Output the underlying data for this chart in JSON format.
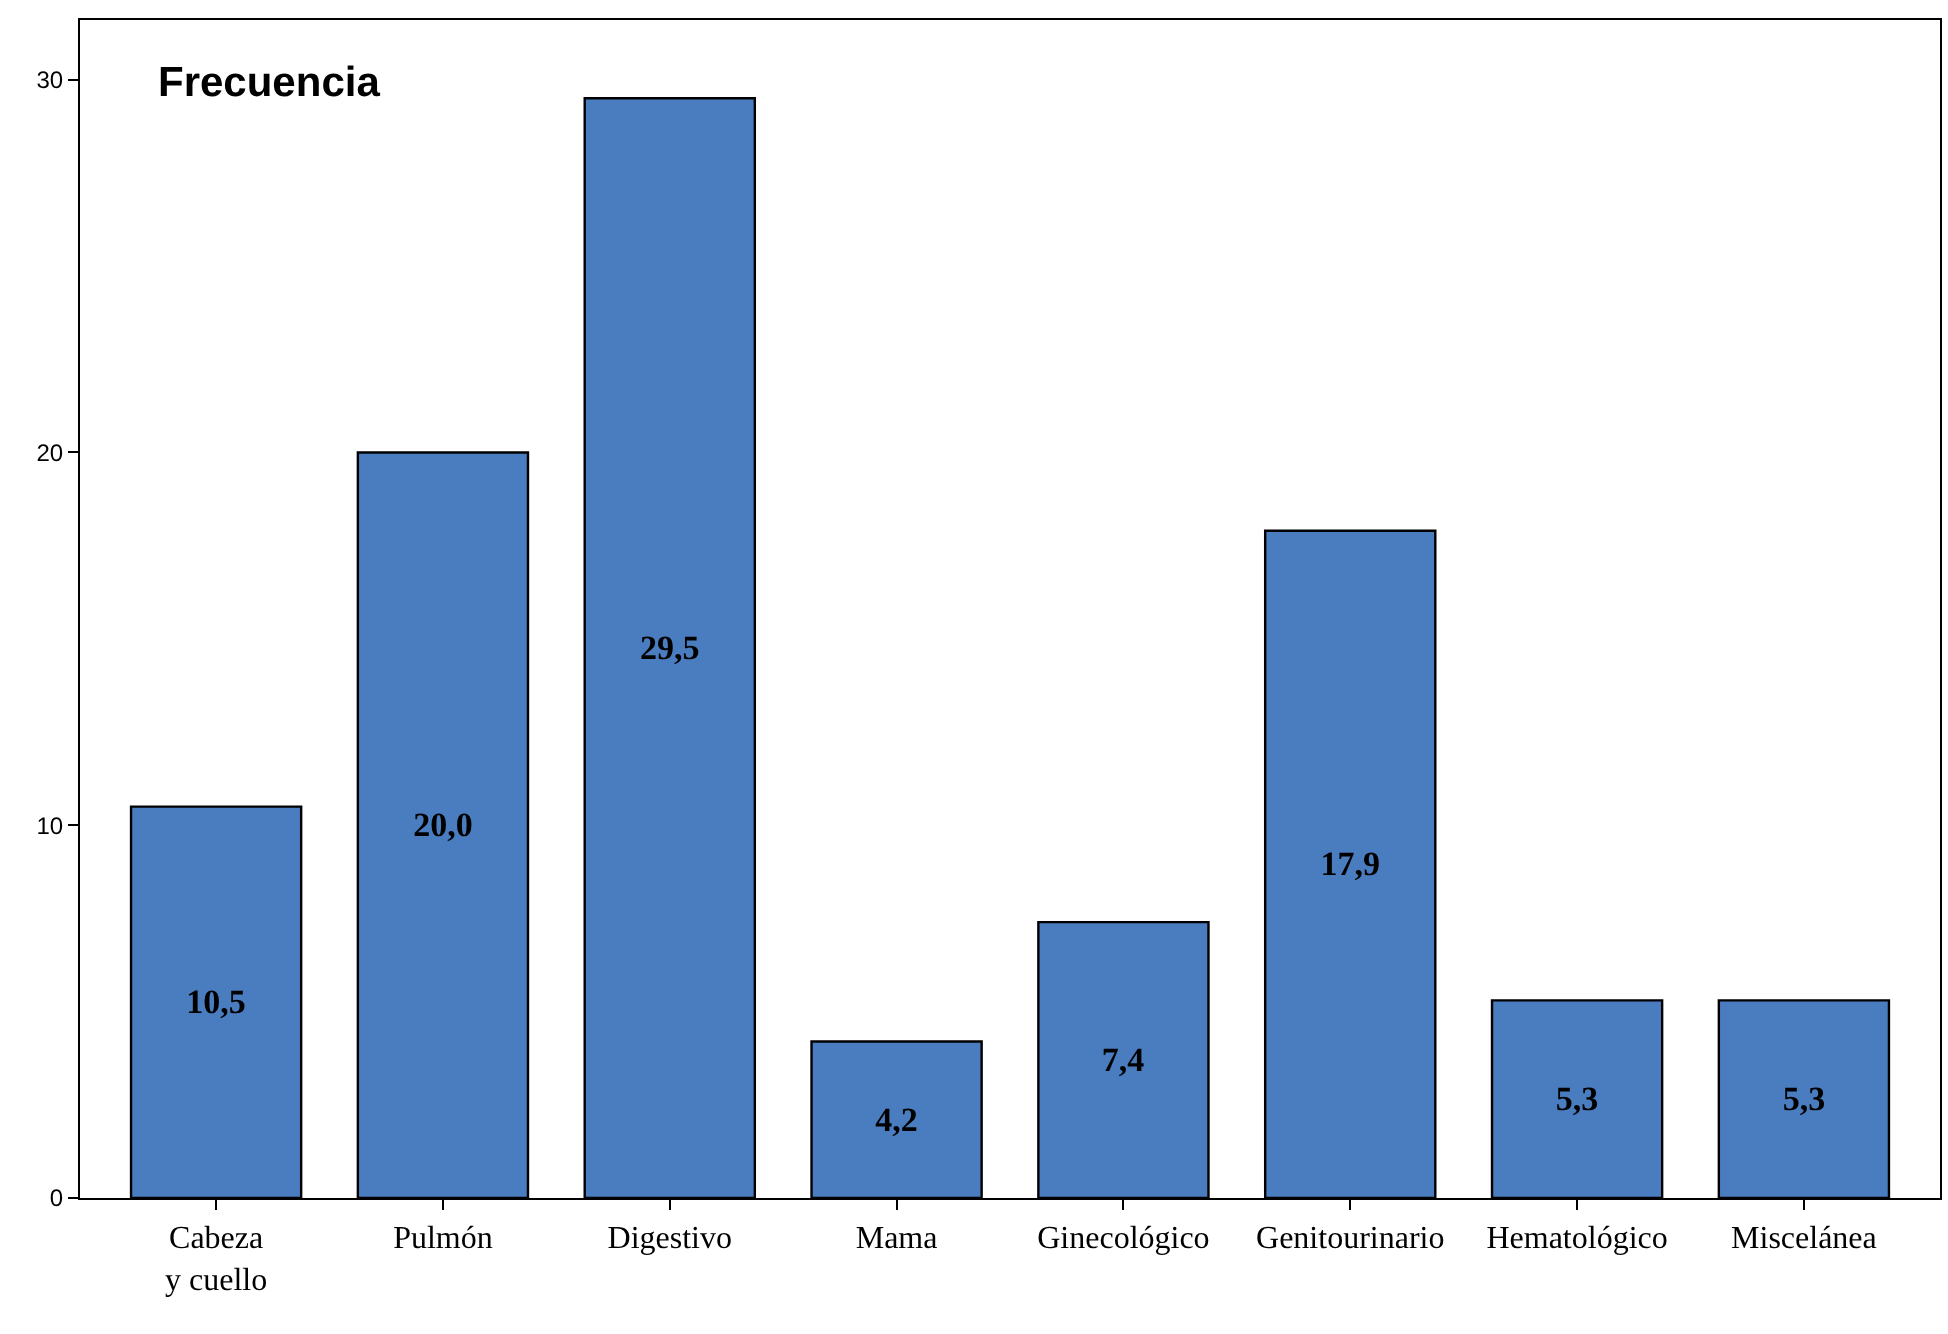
{
  "chart_data": {
    "type": "bar",
    "title": "Frecuencia",
    "categories": [
      "Cabeza\ny cuello",
      "Pulmón",
      "Digestivo",
      "Mama",
      "Ginecológico",
      "Genitourinario",
      "Hematológico",
      "Miscelánea"
    ],
    "values": [
      10.5,
      20.0,
      29.5,
      4.2,
      7.4,
      17.9,
      5.3,
      5.3
    ],
    "value_labels": [
      "10,5",
      "20,0",
      "29,5",
      "4,2",
      "7,4",
      "17,9",
      "5,3",
      "5,3"
    ],
    "color": "#4a7cc0",
    "ylim": [
      0,
      31.6
    ],
    "yticks": [
      0,
      10,
      20,
      30
    ]
  }
}
